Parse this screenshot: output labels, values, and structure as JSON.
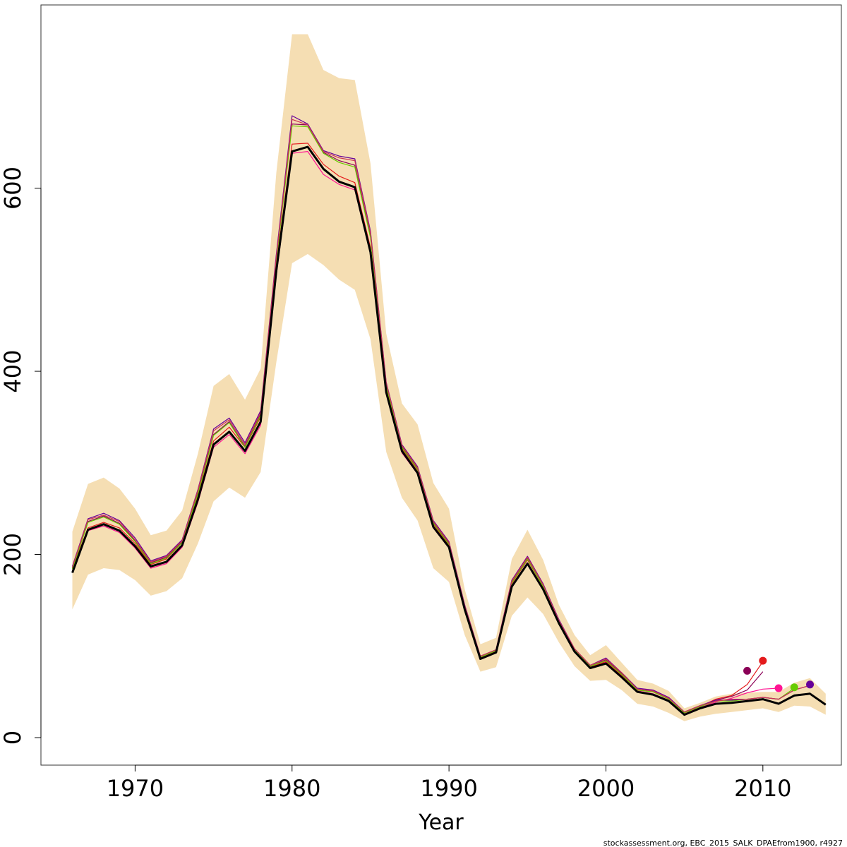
{
  "chart_data": {
    "type": "line",
    "xlabel": "Year",
    "ylabel": "",
    "xlim": [
      1964,
      2015
    ],
    "ylim": [
      -30,
      800
    ],
    "xticks": [
      1970,
      1980,
      1990,
      2000,
      2010
    ],
    "yticks": [
      0,
      200,
      400,
      600
    ],
    "grid": false,
    "legend": "none",
    "footnote": "stockassessment.org, EBC_2015_SALK_DPAEfrom1900, r4927",
    "confidence_band": {
      "color": "#F5DEB3",
      "x": [
        1966,
        1967,
        1968,
        1969,
        1970,
        1971,
        1972,
        1973,
        1974,
        1975,
        1976,
        1977,
        1978,
        1979,
        1980,
        1981,
        1982,
        1983,
        1984,
        1985,
        1986,
        1987,
        1988,
        1989,
        1990,
        1991,
        1992,
        1993,
        1994,
        1995,
        1996,
        1997,
        1998,
        1999,
        2000,
        2001,
        2002,
        2003,
        2004,
        2005,
        2006,
        2007,
        2008,
        2009,
        2010,
        2011,
        2012,
        2013,
        2014
      ],
      "lower": [
        140,
        178,
        185,
        183,
        172,
        155,
        160,
        174,
        212,
        258,
        273,
        262,
        290,
        410,
        518,
        528,
        516,
        500,
        489,
        435,
        312,
        262,
        237,
        185,
        170,
        112,
        72,
        77,
        133,
        153,
        135,
        104,
        78,
        62,
        63,
        52,
        37,
        34,
        27,
        18,
        23,
        26,
        28,
        30,
        32,
        28,
        35,
        34,
        25
      ],
      "upper": [
        225,
        277,
        284,
        272,
        250,
        221,
        226,
        248,
        310,
        384,
        397,
        369,
        403,
        617,
        768,
        768,
        729,
        720,
        718,
        627,
        441,
        365,
        342,
        278,
        250,
        162,
        102,
        109,
        195,
        227,
        194,
        145,
        112,
        90,
        101,
        82,
        63,
        59,
        51,
        32,
        38,
        45,
        48,
        49,
        50,
        50,
        60,
        65,
        48
      ]
    },
    "series": [
      {
        "color": "#000000",
        "values": [
          180,
          227,
          233,
          226,
          209,
          187,
          192,
          210,
          260,
          320,
          334,
          313,
          345,
          510,
          640,
          645,
          621,
          607,
          601,
          530,
          377,
          313,
          289,
          230,
          208,
          140,
          86,
          93,
          165,
          190,
          162,
          125,
          94,
          76,
          81,
          66,
          50,
          47,
          40,
          25,
          32,
          37,
          38,
          40,
          42,
          37,
          46,
          48,
          36
        ]
      },
      {
        "color": "#e41a1c",
        "values": [
          184,
          229,
          235,
          229,
          212,
          189,
          195,
          213,
          264,
          324,
          339,
          317,
          350,
          516,
          648,
          649,
          626,
          613,
          606,
          535,
          381,
          316,
          292,
          233,
          210,
          141,
          87,
          94,
          168,
          194,
          165,
          127,
          95,
          77,
          83,
          68,
          52,
          50,
          43,
          27,
          34,
          42,
          46,
          58,
          83
        ]
      },
      {
        "color": "#ff1493",
        "values": [
          182,
          226,
          231,
          224,
          207,
          185,
          190,
          208,
          257,
          317,
          331,
          310,
          341,
          505,
          638,
          640,
          615,
          604,
          598,
          528,
          376,
          311,
          288,
          229,
          207,
          139,
          86,
          93,
          165,
          191,
          163,
          125,
          94,
          76,
          82,
          67,
          51,
          48,
          41,
          26,
          33,
          39,
          43,
          49,
          53,
          54
        ]
      },
      {
        "color": "#8b0057",
        "values": [
          185,
          236,
          242,
          234,
          215,
          191,
          197,
          214,
          268,
          331,
          345,
          318,
          354,
          523,
          670,
          669,
          639,
          630,
          625,
          548,
          385,
          318,
          294,
          235,
          212,
          143,
          88,
          95,
          170,
          196,
          166,
          128,
          96,
          78,
          85,
          70,
          53,
          51,
          43,
          28,
          35,
          41,
          45,
          52,
          72
        ]
      },
      {
        "color": "#66cc00",
        "values": [
          184,
          235,
          241,
          233,
          214,
          190,
          196,
          213,
          266,
          330,
          344,
          317,
          352,
          521,
          668,
          667,
          638,
          628,
          623,
          546,
          384,
          317,
          293,
          234,
          211,
          143,
          88,
          95,
          169,
          195,
          165,
          127,
          96,
          78,
          84,
          69,
          52,
          50,
          42,
          27,
          34,
          40,
          40,
          42,
          44,
          42,
          54
        ]
      },
      {
        "color": "#660099",
        "values": [
          187,
          239,
          245,
          237,
          218,
          193,
          199,
          216,
          271,
          337,
          349,
          322,
          357,
          528,
          679,
          670,
          641,
          635,
          632,
          553,
          388,
          320,
          296,
          237,
          214,
          145,
          89,
          96,
          172,
          198,
          168,
          129,
          97,
          79,
          87,
          71,
          54,
          52,
          44,
          28,
          35,
          41,
          41,
          42,
          44,
          42,
          52,
          57
        ]
      },
      {
        "color": "#cc3355",
        "values": [
          186,
          238,
          243,
          236,
          216,
          192,
          198,
          215,
          270,
          335,
          347,
          320,
          355,
          525,
          675,
          669,
          640,
          633,
          630,
          551,
          387,
          319,
          295,
          236,
          213,
          144,
          89,
          96,
          171,
          197,
          167,
          128,
          97,
          79,
          86,
          71,
          53,
          51,
          43,
          28,
          35,
          40,
          42,
          42,
          44,
          42,
          52,
          57
        ]
      }
    ],
    "endpoints": [
      {
        "x": 2009,
        "y": 73,
        "color": "#8b0057"
      },
      {
        "x": 2010,
        "y": 84,
        "color": "#e41a1c"
      },
      {
        "x": 2011,
        "y": 54,
        "color": "#ff1493"
      },
      {
        "x": 2012,
        "y": 55,
        "color": "#66cc00"
      },
      {
        "x": 2013,
        "y": 58,
        "color": "#660099"
      }
    ]
  }
}
